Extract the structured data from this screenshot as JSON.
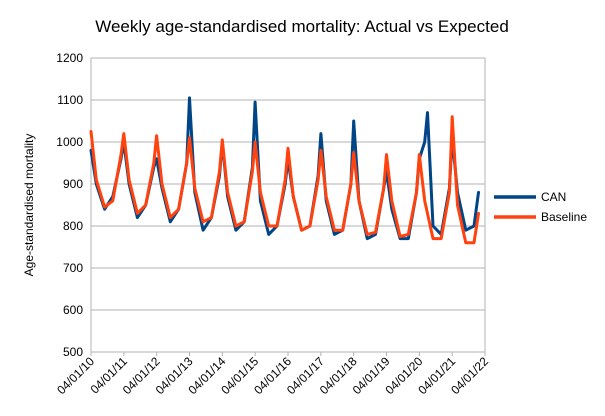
{
  "chart_data": {
    "type": "line",
    "title": "Weekly age-standardised mortality: Actual vs Expected",
    "xlabel": "",
    "ylabel": "Age-standardised mortality",
    "ylim": [
      500,
      1200
    ],
    "yticks": [
      500,
      600,
      700,
      800,
      900,
      1000,
      1100,
      1200
    ],
    "xlim": [
      "2010-01-04",
      "2022-01-04"
    ],
    "xtick_labels": [
      "04/01/10",
      "04/01/11",
      "04/01/12",
      "04/01/13",
      "04/01/14",
      "04/01/15",
      "04/01/16",
      "04/01/17",
      "04/01/18",
      "04/01/19",
      "04/01/20",
      "04/01/21",
      "04/01/22"
    ],
    "grid": "horizontal",
    "legend": "right",
    "colors": {
      "CAN": "#004586",
      "Baseline": "#ff420e"
    },
    "series": [
      {
        "name": "CAN",
        "x": [
          "2010-01-04",
          "2010-03-04",
          "2010-06-04",
          "2010-09-04",
          "2010-12-04",
          "2011-01-04",
          "2011-03-04",
          "2011-06-04",
          "2011-09-04",
          "2011-12-04",
          "2012-01-04",
          "2012-03-04",
          "2012-06-04",
          "2012-09-04",
          "2012-12-04",
          "2013-01-04",
          "2013-03-04",
          "2013-06-04",
          "2013-09-04",
          "2013-12-04",
          "2014-01-04",
          "2014-03-04",
          "2014-06-04",
          "2014-09-04",
          "2014-12-04",
          "2015-01-04",
          "2015-03-04",
          "2015-06-04",
          "2015-09-04",
          "2015-12-04",
          "2016-01-04",
          "2016-03-04",
          "2016-06-04",
          "2016-09-04",
          "2016-12-04",
          "2017-01-04",
          "2017-03-04",
          "2017-06-04",
          "2017-09-04",
          "2017-12-04",
          "2018-01-04",
          "2018-03-04",
          "2018-06-04",
          "2018-09-04",
          "2018-12-04",
          "2019-01-04",
          "2019-03-04",
          "2019-06-04",
          "2019-09-04",
          "2019-12-04",
          "2020-01-04",
          "2020-03-04",
          "2020-04-04",
          "2020-06-04",
          "2020-09-04",
          "2020-12-04",
          "2021-01-04",
          "2021-03-04",
          "2021-06-04",
          "2021-09-04",
          "2021-10-24"
        ],
        "values": [
          980,
          900,
          840,
          870,
          960,
          1000,
          900,
          820,
          850,
          940,
          960,
          890,
          810,
          840,
          950,
          1105,
          880,
          790,
          820,
          920,
          1000,
          870,
          790,
          810,
          940,
          1095,
          860,
          780,
          800,
          900,
          960,
          870,
          790,
          800,
          920,
          1020,
          860,
          780,
          790,
          900,
          1050,
          860,
          770,
          780,
          890,
          930,
          840,
          770,
          770,
          880,
          960,
          1000,
          1070,
          800,
          780,
          890,
          1010,
          880,
          790,
          800,
          880
        ]
      },
      {
        "name": "Baseline",
        "x": [
          "2010-01-04",
          "2010-03-04",
          "2010-06-04",
          "2010-09-04",
          "2010-12-04",
          "2011-01-04",
          "2011-03-04",
          "2011-06-04",
          "2011-09-04",
          "2011-12-04",
          "2012-01-04",
          "2012-03-04",
          "2012-06-04",
          "2012-09-04",
          "2012-12-04",
          "2013-01-04",
          "2013-03-04",
          "2013-06-04",
          "2013-09-04",
          "2013-12-04",
          "2014-01-04",
          "2014-03-04",
          "2014-06-04",
          "2014-09-04",
          "2014-12-04",
          "2015-01-04",
          "2015-03-04",
          "2015-06-04",
          "2015-09-04",
          "2015-12-04",
          "2016-01-04",
          "2016-03-04",
          "2016-06-04",
          "2016-09-04",
          "2016-12-04",
          "2017-01-04",
          "2017-03-04",
          "2017-06-04",
          "2017-09-04",
          "2017-12-04",
          "2018-01-04",
          "2018-03-04",
          "2018-06-04",
          "2018-09-04",
          "2018-12-04",
          "2019-01-04",
          "2019-03-04",
          "2019-06-04",
          "2019-09-04",
          "2019-12-04",
          "2020-01-04",
          "2020-03-04",
          "2020-06-04",
          "2020-09-04",
          "2020-12-04",
          "2021-01-04",
          "2021-03-04",
          "2021-06-04",
          "2021-09-04",
          "2021-10-24"
        ],
        "values": [
          1025,
          910,
          845,
          860,
          970,
          1020,
          910,
          830,
          850,
          950,
          1015,
          900,
          820,
          840,
          950,
          1010,
          890,
          810,
          820,
          930,
          1005,
          880,
          800,
          810,
          930,
          1000,
          880,
          800,
          800,
          910,
          985,
          870,
          790,
          800,
          910,
          980,
          870,
          790,
          790,
          900,
          975,
          860,
          780,
          785,
          890,
          970,
          860,
          775,
          780,
          880,
          970,
          860,
          770,
          770,
          880,
          1060,
          850,
          760,
          760,
          830
        ]
      }
    ]
  }
}
